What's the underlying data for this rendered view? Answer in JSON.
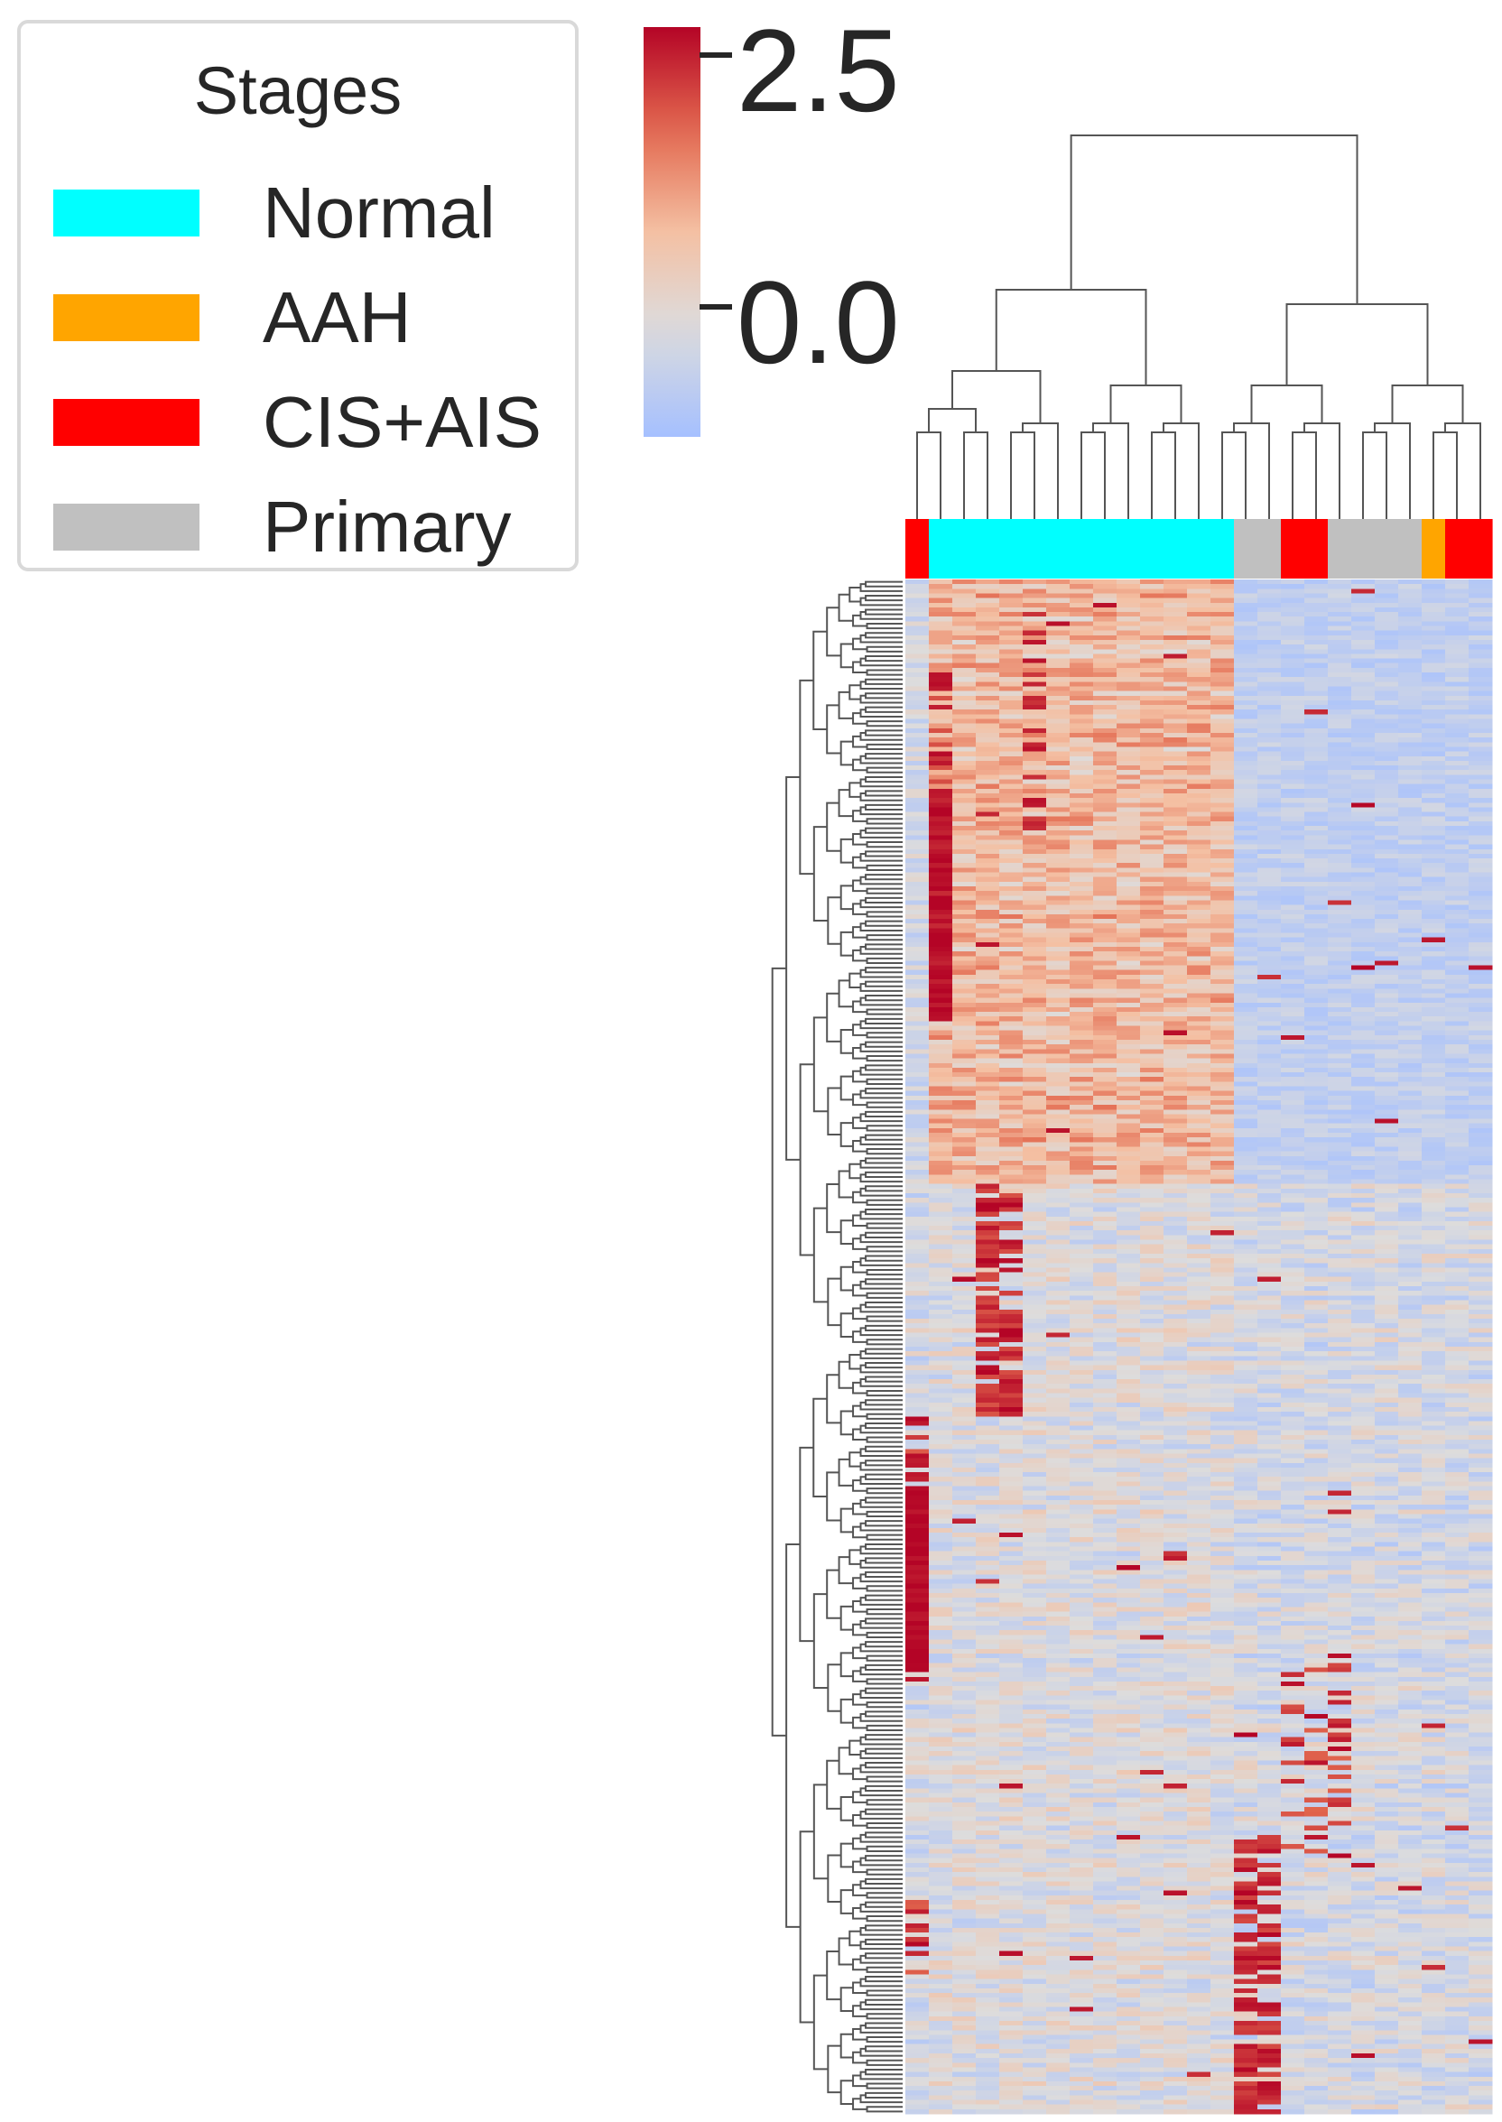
{
  "colors": {
    "Normal": "#00ffff",
    "AAH": "#ffa500",
    "CIS+AIS": "#ff0000",
    "Primary": "#c0c0c0",
    "colormap": "coolwarm",
    "colormap_low": "#a5c0ff",
    "colormap_mid": "#dddcdc",
    "colormap_high": "#b40426"
  },
  "legend": {
    "title": "Stages",
    "items": [
      {
        "label": "Normal",
        "color": "#00ffff"
      },
      {
        "label": "AAH",
        "color": "#ffa500"
      },
      {
        "label": "CIS+AIS",
        "color": "#ff0000"
      },
      {
        "label": "Primary",
        "color": "#c0c0c0"
      }
    ]
  },
  "colorbar": {
    "ticks": [
      {
        "value": 2.5,
        "label": "2.5"
      },
      {
        "value": 0.0,
        "label": "0.0"
      }
    ]
  },
  "chart_data": {
    "type": "heatmap",
    "title": "",
    "xlabel": "",
    "ylabel": "",
    "clustered": true,
    "row_dendrogram": true,
    "col_dendrogram": true,
    "color_range": [
      -1.1,
      3.0
    ],
    "n_rows": 330,
    "column_stages": [
      "CIS+AIS",
      "Normal",
      "Normal",
      "Normal",
      "Normal",
      "Normal",
      "Normal",
      "Normal",
      "Normal",
      "Normal",
      "Normal",
      "Normal",
      "Normal",
      "Normal",
      "Primary",
      "Primary",
      "CIS+AIS",
      "CIS+AIS",
      "Primary",
      "Primary",
      "Primary",
      "Primary",
      "AAH",
      "CIS+AIS",
      "CIS+AIS"
    ],
    "approximate_block_means": [
      {
        "rows": "1-130",
        "columns": "Normal",
        "value": 0.9
      },
      {
        "rows": "1-130",
        "columns": "Primary / CIS+AIS / AAH (right group)",
        "value": -0.5
      },
      {
        "rows": "45-95",
        "columns": "col 2",
        "value": 2.6
      },
      {
        "rows": "130-180",
        "columns": "col 4-5",
        "value": 2.4
      },
      {
        "rows": "195-235",
        "columns": "col 1",
        "value": 2.8
      },
      {
        "rows": "270-330",
        "columns": "col 15-16",
        "value": 2.6
      },
      {
        "rows": "130-330",
        "columns": "Normal",
        "value": 0.0
      }
    ]
  }
}
